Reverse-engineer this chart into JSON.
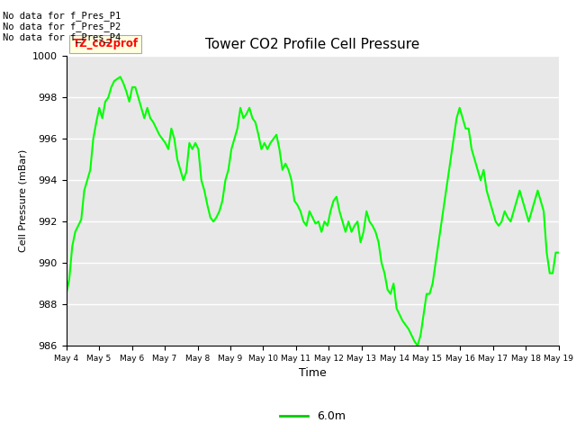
{
  "title": "Tower CO2 Profile Cell Pressure",
  "xlabel": "Time",
  "ylabel": "Cell Pressure (mBar)",
  "ylim": [
    986,
    1000
  ],
  "yticks": [
    986,
    988,
    990,
    992,
    994,
    996,
    998,
    1000
  ],
  "line_color": "#00FF00",
  "line_width": 1.5,
  "bg_color": "#E8E8E8",
  "fig_bg": "#FFFFFF",
  "legend_label": "6.0m",
  "legend_line_color": "#00CC00",
  "no_data_labels": [
    "No data for f_Pres_P1",
    "No data for f_Pres_P2",
    "No data for f_Pres_P4"
  ],
  "tz_label": "TZ_co2prof",
  "xtick_labels": [
    "May 4",
    "May 5",
    "May 6",
    "May 7",
    "May 8",
    "May 9",
    "May 10",
    "May 11",
    "May 12",
    "May 13",
    "May 14",
    "May 15",
    "May 16",
    "May 17",
    "May 18",
    "May 19"
  ],
  "y_values": [
    988.5,
    989.2,
    990.8,
    991.5,
    991.8,
    992.1,
    993.5,
    994.0,
    994.5,
    996.0,
    996.8,
    997.5,
    997.0,
    997.8,
    998.0,
    998.5,
    998.8,
    998.9,
    999.0,
    998.7,
    998.3,
    997.8,
    998.5,
    998.5,
    998.0,
    997.5,
    997.0,
    997.5,
    997.0,
    996.8,
    996.5,
    996.2,
    996.0,
    995.8,
    995.5,
    996.5,
    996.0,
    995.0,
    994.5,
    994.0,
    994.4,
    995.8,
    995.5,
    995.8,
    995.5,
    994.0,
    993.5,
    992.8,
    992.2,
    992.0,
    992.2,
    992.5,
    993.0,
    994.0,
    994.5,
    995.5,
    996.0,
    996.5,
    997.5,
    997.0,
    997.2,
    997.5,
    997.0,
    996.8,
    996.2,
    995.5,
    995.8,
    995.5,
    995.8,
    996.0,
    996.2,
    995.5,
    994.5,
    994.8,
    994.5,
    994.0,
    993.0,
    992.8,
    992.5,
    992.0,
    991.8,
    992.5,
    992.2,
    991.9,
    992.0,
    991.5,
    992.0,
    991.8,
    992.5,
    993.0,
    993.2,
    992.5,
    992.0,
    991.5,
    992.0,
    991.5,
    991.8,
    992.0,
    991.0,
    991.5,
    992.5,
    992.0,
    991.8,
    991.5,
    991.0,
    990.0,
    989.5,
    988.7,
    988.5,
    989.0,
    987.8,
    987.5,
    987.2,
    987.0,
    986.8,
    986.5,
    986.2,
    986.0,
    986.5,
    987.5,
    988.5,
    988.5,
    989.0,
    990.0,
    991.0,
    992.0,
    993.0,
    994.0,
    995.0,
    996.0,
    997.0,
    997.5,
    997.0,
    996.5,
    996.5,
    995.5,
    995.0,
    994.5,
    994.0,
    994.5,
    993.5,
    993.0,
    992.5,
    992.0,
    991.8,
    992.0,
    992.5,
    992.2,
    992.0,
    992.5,
    993.0,
    993.5,
    993.0,
    992.5,
    992.0,
    992.5,
    993.0,
    993.5,
    993.0,
    992.5,
    990.5,
    989.5,
    989.5,
    990.5,
    990.5
  ]
}
